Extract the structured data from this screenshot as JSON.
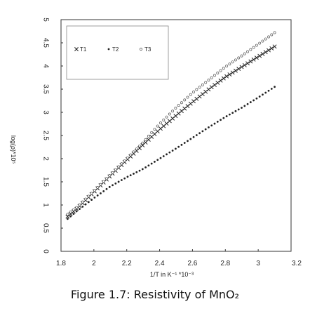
{
  "caption": "Figure 1.7: Resistivity of MnO₂",
  "chart_data": {
    "type": "scatter",
    "title": "",
    "xlabel": "1/T in K⁻¹ *10⁻³",
    "ylabel": "log(ρ)*10⁵",
    "xlim": [
      1.8,
      3.2
    ],
    "ylim": [
      0,
      5
    ],
    "x_ticks": [
      "1.8",
      "2",
      "2.2",
      "2.4",
      "2.6",
      "2.8",
      "3",
      "3.2"
    ],
    "y_ticks": [
      "0",
      "0.5",
      "1",
      "1.5",
      "2",
      "2.5",
      "3",
      "3.5",
      "4",
      "4.5",
      "5"
    ],
    "grid": false,
    "legend_position": "top-left",
    "series": [
      {
        "name": "T1",
        "marker": "x",
        "color": "#222222",
        "x_start": 1.84,
        "x_end": 3.1,
        "x": [
          1.84,
          1.9,
          2.0,
          2.1,
          2.2,
          2.3,
          2.36,
          2.4,
          2.5,
          2.6,
          2.7,
          2.8,
          2.9,
          3.0,
          3.1
        ],
        "y": [
          0.75,
          0.93,
          1.28,
          1.63,
          1.97,
          2.3,
          2.5,
          2.63,
          2.93,
          3.22,
          3.5,
          3.76,
          3.98,
          4.2,
          4.42
        ]
      },
      {
        "name": "T2",
        "marker": "filled-dot",
        "color": "#222222",
        "x_start": 1.84,
        "x_end": 3.1,
        "x": [
          1.84,
          1.9,
          2.0,
          2.1,
          2.2,
          2.3,
          2.4,
          2.5,
          2.6,
          2.7,
          2.8,
          2.9,
          3.0,
          3.1
        ],
        "y": [
          0.7,
          0.88,
          1.15,
          1.4,
          1.6,
          1.78,
          2.0,
          2.22,
          2.45,
          2.68,
          2.9,
          3.1,
          3.32,
          3.55
        ]
      },
      {
        "name": "T3",
        "marker": "open-circle",
        "color": "#555555",
        "x_start": 1.84,
        "x_end": 3.1,
        "x": [
          1.84,
          1.9,
          2.0,
          2.1,
          2.2,
          2.3,
          2.36,
          2.4,
          2.5,
          2.6,
          2.7,
          2.8,
          2.9,
          3.0,
          3.1
        ],
        "y": [
          0.8,
          0.96,
          1.3,
          1.65,
          2.0,
          2.35,
          2.6,
          2.75,
          3.1,
          3.42,
          3.7,
          3.98,
          4.22,
          4.47,
          4.72
        ]
      }
    ]
  }
}
